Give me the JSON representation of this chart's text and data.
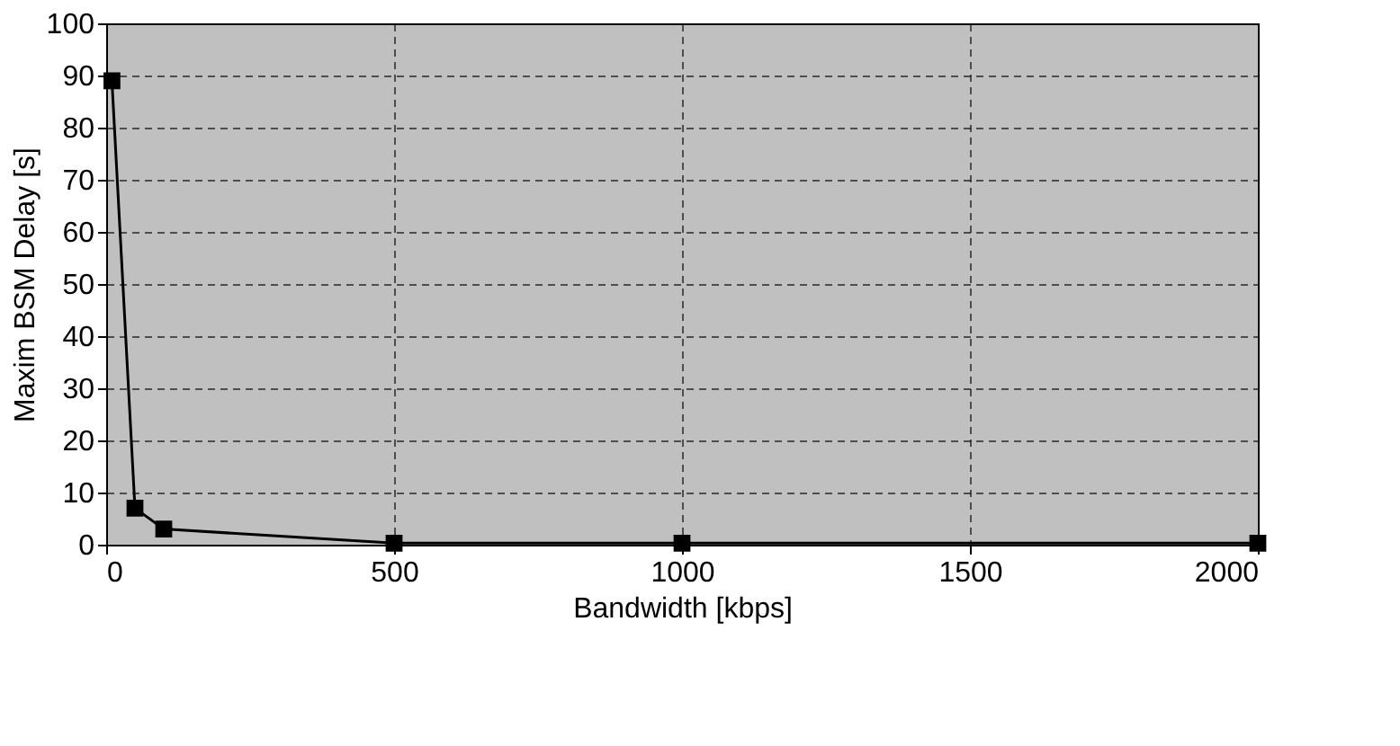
{
  "chart_data": {
    "type": "line",
    "xlabel": "Bandwidth [kbps]",
    "ylabel": "Maxim BSM Delay [s]",
    "x": [
      10,
      50,
      100,
      500,
      1000,
      2000
    ],
    "series": [
      {
        "color": "#000000",
        "values": [
          89,
          7,
          3,
          0.3,
          0.3,
          0.3
        ]
      }
    ],
    "xlim": [
      0,
      2000
    ],
    "xticks": [
      0,
      500,
      1000,
      1500,
      2000
    ],
    "ylim": [
      0,
      100
    ],
    "yticks": [
      0,
      10,
      20,
      30,
      40,
      50,
      60,
      70,
      80,
      90,
      100
    ],
    "grid": true,
    "marker": "square",
    "line_style": "solid"
  }
}
